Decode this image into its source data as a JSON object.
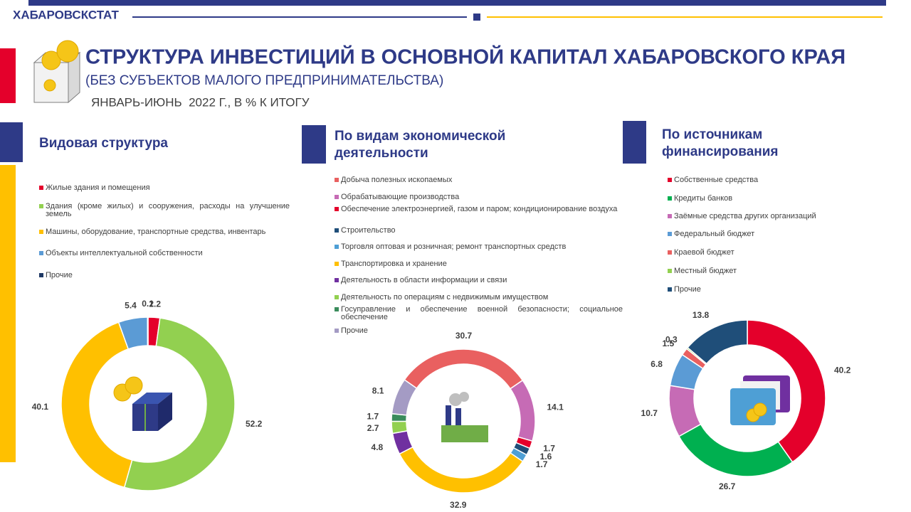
{
  "header": {
    "org": "ХАБАРОВСКСТАТ",
    "title": "СТРУКТУРА ИНВЕСТИЦИЙ В ОСНОВНОЙ КАПИТАЛ ХАБАРОВСКОГО КРАЯ",
    "subtitle": "(БЕЗ СУБЪЕКТОВ МАЛОГО ПРЕДПРИНИМАТЕЛЬСТВА)",
    "period": "ЯНВАРЬ-ИЮНЬ  2022 Г., В % К ИТОГУ"
  },
  "chart_data": [
    {
      "type": "donut",
      "title": "Видовая структура",
      "categories": [
        "Жилые здания и помещения",
        "Здания (кроме жилых) и сооружения, расходы на улучшение земель",
        "Машины, оборудование, транспортные средства, инвентарь",
        "Объекты интеллектуальной собственности",
        "Прочие"
      ],
      "values": [
        2.2,
        52.2,
        40.1,
        5.4,
        0.1
      ],
      "colors": [
        "#e4002b",
        "#92d050",
        "#ffc000",
        "#5b9bd5",
        "#1f3864"
      ]
    },
    {
      "type": "donut",
      "title": "По видам экономической деятельности",
      "categories": [
        "Добыча полезных ископаемых",
        "Обрабатывающие производства",
        "Обеспечение электроэнергией, газом и паром; кондиционирование воздуха",
        "Строительство",
        "Торговля оптовая и розничная; ремонт транспортных средств",
        "Транспортировка и хранение",
        "Деятельность в области информации и связи",
        "Деятельность по операциям с недвижимым имуществом",
        "Госуправление и обеспечение военной безопасности; социальное обеспечение",
        "Прочие"
      ],
      "values": [
        30.7,
        14.1,
        1.7,
        1.6,
        1.7,
        32.9,
        4.8,
        2.7,
        1.7,
        8.1
      ],
      "colors": [
        "#e96060",
        "#c66bb5",
        "#e4002b",
        "#1f4e79",
        "#4e9fd5",
        "#ffc000",
        "#7030a0",
        "#92d050",
        "#3a8c5c",
        "#a49bc4"
      ]
    },
    {
      "type": "donut",
      "title": "По источникам финансирования",
      "categories": [
        "Собственные средства",
        "Кредиты банков",
        "Заёмные средства других организаций",
        "Федеральный бюджет",
        "Краевой бюджет",
        "Местный бюджет",
        "Прочие"
      ],
      "values": [
        40.2,
        26.7,
        10.7,
        6.8,
        1.5,
        0.3,
        13.8
      ],
      "colors": [
        "#e4002b",
        "#00b050",
        "#c66bb5",
        "#5b9bd5",
        "#e96060",
        "#92d050",
        "#1f4e79"
      ]
    }
  ]
}
